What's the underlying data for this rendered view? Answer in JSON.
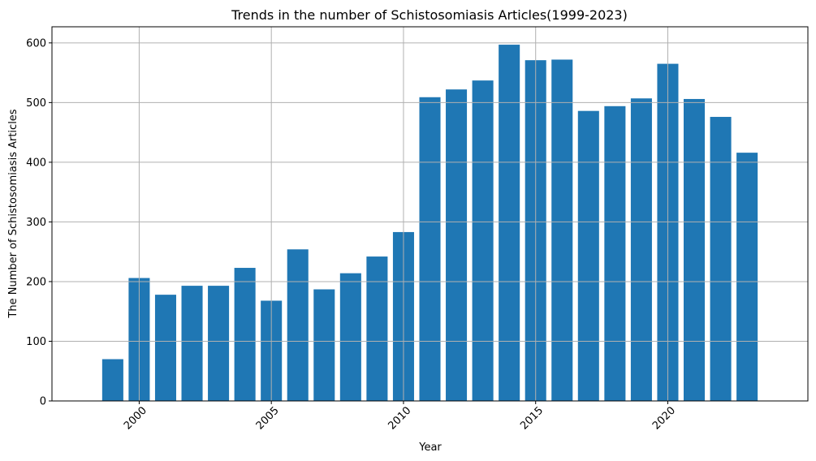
{
  "chart_data": {
    "type": "bar",
    "title": "Trends in the number of Schistosomiasis Articles(1999-2023)",
    "xlabel": "Year",
    "ylabel": "The Number of Schistosomiasis Articles",
    "x": [
      1999,
      2000,
      2001,
      2002,
      2003,
      2004,
      2005,
      2006,
      2007,
      2008,
      2009,
      2010,
      2011,
      2012,
      2013,
      2014,
      2015,
      2016,
      2017,
      2018,
      2019,
      2020,
      2021,
      2022,
      2023
    ],
    "values": [
      70,
      206,
      178,
      193,
      193,
      223,
      168,
      254,
      187,
      214,
      242,
      283,
      509,
      522,
      537,
      597,
      571,
      572,
      486,
      494,
      507,
      565,
      506,
      476,
      416
    ],
    "xlim": [
      1996.7,
      2025.3
    ],
    "ylim": [
      0,
      627
    ],
    "xticks": [
      2000,
      2005,
      2010,
      2015,
      2020
    ],
    "yticks": [
      0,
      100,
      200,
      300,
      400,
      500,
      600
    ],
    "grid": true,
    "bar_color": "#1f77b4"
  }
}
